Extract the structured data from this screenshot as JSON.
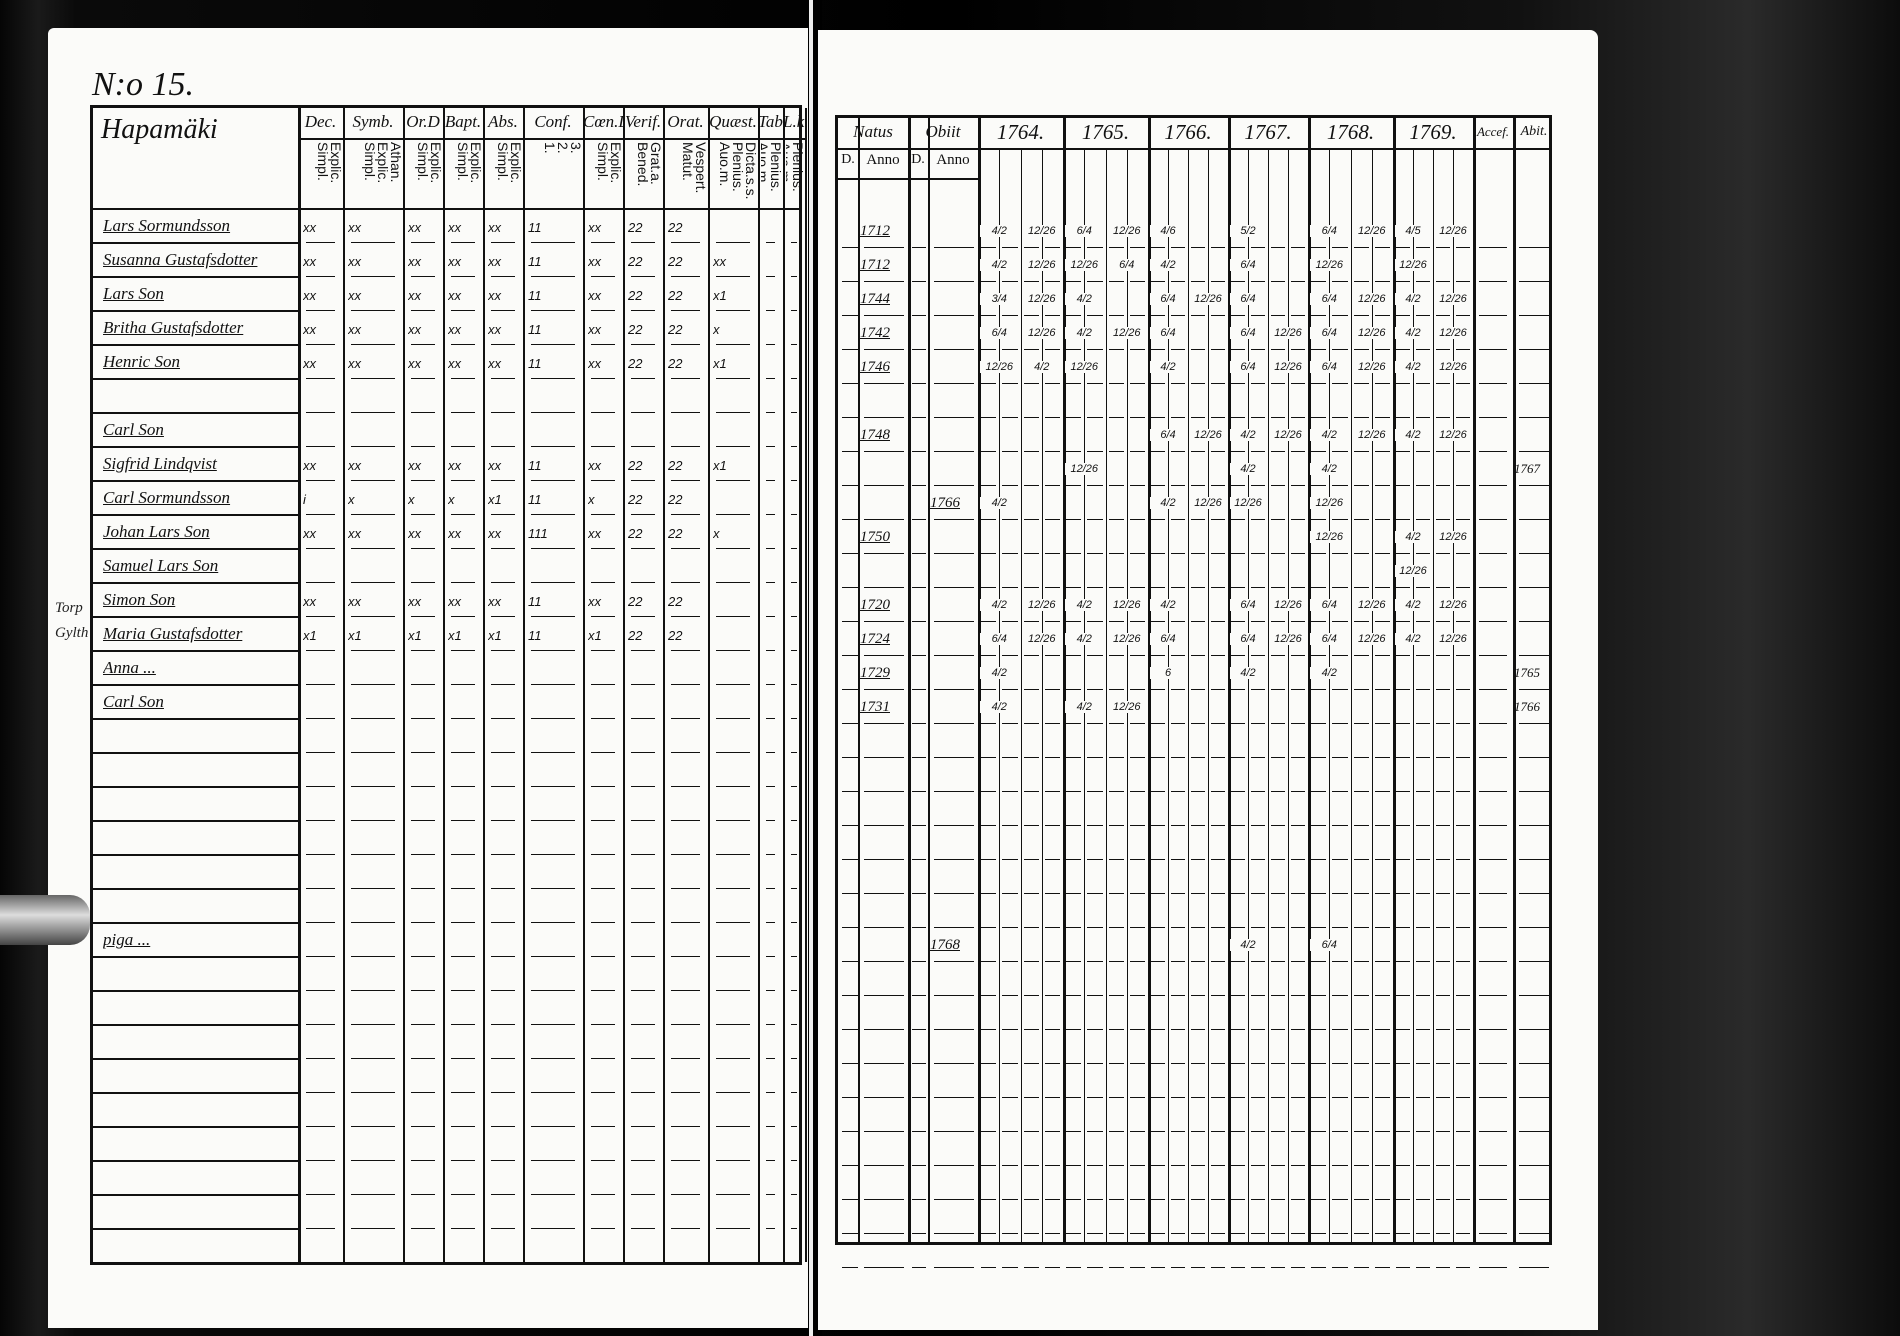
{
  "left_page": {
    "page_number": "N:o 15.",
    "village": "Hapamäki",
    "column_headers": [
      {
        "label": "Dec.",
        "sub": "Explic.\nSimpl."
      },
      {
        "label": "Symb.",
        "sub": "Athan.\nExplic.\nSimpl."
      },
      {
        "label": "Or.D",
        "sub": "Explic.\nSimpl."
      },
      {
        "label": "Bapt.",
        "sub": "Explic.\nSimpl."
      },
      {
        "label": "Abs.",
        "sub": "Explic.\nSimpl."
      },
      {
        "label": "Conf.",
        "sub": "3.\n2.\n1."
      },
      {
        "label": "Cœn.D.",
        "sub": "Explic.\nSimpl."
      },
      {
        "label": "Verif.",
        "sub": "Grat.a.\nBened."
      },
      {
        "label": "Orat.",
        "sub": "Vespert.\nMatut."
      },
      {
        "label": "Quæst.",
        "sub": "Dicta.s.s.\nPlenius.\nAuo.m."
      },
      {
        "label": "Tabul.",
        "sub": "Plenius.\nAuo.m."
      },
      {
        "label": "L.k.",
        "sub": "Plenius.\nAuo.m."
      }
    ],
    "margin_notes": [
      "Torp",
      "Gylth"
    ]
  },
  "right_page": {
    "headers": {
      "natus": "Natus",
      "obiit": "Obiit",
      "d": "D.",
      "anno": "Anno",
      "years": [
        "1764.",
        "1765.",
        "1766.",
        "1767.",
        "1768.",
        "1769."
      ],
      "accessit": "Accef.",
      "abiit": "Abit."
    }
  },
  "rows": [
    {
      "name": "Lars Sormundsson",
      "marks": [
        "xx",
        "xx",
        "xx",
        "xx",
        "xx",
        "11",
        "xx",
        "22",
        "22",
        "",
        "",
        ""
      ],
      "born": "1712",
      "died": "",
      "exams": [
        [
          "4/2",
          "12/26"
        ],
        [
          "6/4",
          "12/26"
        ],
        [
          "4/6"
        ],
        [
          "5/2"
        ],
        [
          "6/4",
          "12/26"
        ],
        [
          "4/5",
          "12/26"
        ]
      ],
      "moved": ""
    },
    {
      "name": "Susanna Gustafsdotter",
      "marks": [
        "xx",
        "xx",
        "xx",
        "xx",
        "xx",
        "11",
        "xx",
        "22",
        "22",
        "xx",
        "",
        ""
      ],
      "born": "1712",
      "died": "",
      "exams": [
        [
          "4/2",
          "12/26"
        ],
        [
          "12/26",
          "6/4"
        ],
        [
          "4/2"
        ],
        [
          "6/4"
        ],
        [
          "12/26"
        ],
        [
          "12/26"
        ]
      ],
      "moved": ""
    },
    {
      "name": "Lars Son",
      "marks": [
        "xx",
        "xx",
        "xx",
        "xx",
        "xx",
        "11",
        "xx",
        "22",
        "22",
        "x1",
        "",
        ""
      ],
      "born": "1744",
      "died": "",
      "exams": [
        [
          "3/4",
          "12/26"
        ],
        [
          "4/2"
        ],
        [
          "6/4",
          "12/26"
        ],
        [
          "6/4"
        ],
        [
          "6/4",
          "12/26"
        ],
        [
          "4/2",
          "12/26"
        ]
      ],
      "moved": ""
    },
    {
      "name": "Britha Gustafsdotter",
      "marks": [
        "xx",
        "xx",
        "xx",
        "xx",
        "xx",
        "11",
        "xx",
        "22",
        "22",
        "x",
        "",
        ""
      ],
      "born": "1742",
      "died": "",
      "exams": [
        [
          "6/4",
          "12/26"
        ],
        [
          "4/2",
          "12/26"
        ],
        [
          "6/4"
        ],
        [
          "6/4",
          "12/26"
        ],
        [
          "6/4",
          "12/26"
        ],
        [
          "4/2",
          "12/26"
        ]
      ],
      "moved": ""
    },
    {
      "name": "Henric Son",
      "marks": [
        "xx",
        "xx",
        "xx",
        "xx",
        "xx",
        "11",
        "xx",
        "22",
        "22",
        "x1",
        "",
        ""
      ],
      "born": "1746",
      "died": "",
      "exams": [
        [
          "12/26",
          "4/2"
        ],
        [
          "12/26"
        ],
        [
          "4/2"
        ],
        [
          "6/4",
          "12/26"
        ],
        [
          "6/4",
          "12/26"
        ],
        [
          "4/2",
          "12/26"
        ]
      ],
      "moved": ""
    },
    {
      "name": "",
      "marks": [],
      "born": "",
      "died": "",
      "exams": [],
      "moved": ""
    },
    {
      "name": "Carl Son",
      "marks": [],
      "born": "1748",
      "died": "",
      "exams": [
        [],
        [],
        [
          "6/4",
          "12/26"
        ],
        [
          "4/2",
          "12/26"
        ],
        [
          "4/2",
          "12/26"
        ],
        [
          "4/2",
          "12/26"
        ]
      ],
      "moved": ""
    },
    {
      "name": "Sigfrid Lindqvist",
      "marks": [
        "xx",
        "xx",
        "xx",
        "xx",
        "xx",
        "11",
        "xx",
        "22",
        "22",
        "x1",
        "",
        ""
      ],
      "born": "",
      "died": "",
      "exams": [
        [],
        [
          "12/26"
        ],
        [],
        [
          "4/2"
        ],
        [
          "4/2"
        ],
        []
      ],
      "moved": "1767"
    },
    {
      "name": "Carl Sormundsson",
      "marks": [
        "i",
        "x",
        "x",
        "x",
        "x1",
        "11",
        "x",
        "22",
        "22",
        "",
        "",
        ""
      ],
      "born": "",
      "died": "1766",
      "exams": [
        [
          "4/2"
        ],
        [],
        [
          "4/2",
          "12/26"
        ],
        [
          "12/26"
        ],
        [
          "12/26"
        ],
        []
      ],
      "moved": ""
    },
    {
      "name": "Johan Lars Son",
      "marks": [
        "xx",
        "xx",
        "xx",
        "xx",
        "xx",
        "111",
        "xx",
        "22",
        "22",
        "x",
        "",
        ""
      ],
      "born": "1750",
      "died": "",
      "exams": [
        [],
        [],
        [],
        [],
        [
          "12/26"
        ],
        [
          "4/2",
          "12/26"
        ]
      ],
      "moved": ""
    },
    {
      "name": "Samuel Lars Son",
      "marks": [],
      "born": "",
      "died": "",
      "exams": [
        [],
        [],
        [],
        [],
        [],
        [
          "12/26"
        ]
      ],
      "moved": ""
    },
    {
      "name": "Simon Son",
      "marks": [
        "xx",
        "xx",
        "xx",
        "xx",
        "xx",
        "11",
        "xx",
        "22",
        "22",
        "",
        "",
        ""
      ],
      "born": "1720",
      "died": "",
      "exams": [
        [
          "4/2",
          "12/26"
        ],
        [
          "4/2",
          "12/26"
        ],
        [
          "4/2"
        ],
        [
          "6/4",
          "12/26"
        ],
        [
          "6/4",
          "12/26"
        ],
        [
          "4/2",
          "12/26"
        ]
      ],
      "moved": ""
    },
    {
      "name": "Maria Gustafsdotter",
      "marks": [
        "x1",
        "x1",
        "x1",
        "x1",
        "x1",
        "11",
        "x1",
        "22",
        "22",
        "",
        "",
        ""
      ],
      "born": "1724",
      "died": "",
      "exams": [
        [
          "6/4",
          "12/26"
        ],
        [
          "4/2",
          "12/26"
        ],
        [
          "6/4"
        ],
        [
          "6/4",
          "12/26"
        ],
        [
          "6/4",
          "12/26"
        ],
        [
          "4/2",
          "12/26"
        ]
      ],
      "moved": ""
    },
    {
      "name": "Anna ...",
      "marks": [],
      "born": "1729",
      "died": "",
      "exams": [
        [
          "4/2"
        ],
        [],
        [
          "6"
        ],
        [
          "4/2"
        ],
        [
          "4/2"
        ],
        []
      ],
      "moved": "1765"
    },
    {
      "name": "Carl Son",
      "marks": [],
      "born": "1731",
      "died": "",
      "exams": [
        [
          "4/2"
        ],
        [
          "4/2",
          "12/26"
        ],
        [],
        [],
        [],
        []
      ],
      "moved": "1766"
    },
    {
      "name": "",
      "marks": [],
      "born": "",
      "died": "",
      "exams": [],
      "moved": ""
    },
    {
      "name": "",
      "marks": [],
      "born": "",
      "died": "",
      "exams": [],
      "moved": ""
    },
    {
      "name": "",
      "marks": [],
      "born": "",
      "died": "",
      "exams": [],
      "moved": ""
    },
    {
      "name": "",
      "marks": [],
      "born": "",
      "died": "",
      "exams": [],
      "moved": ""
    },
    {
      "name": "",
      "marks": [],
      "born": "",
      "died": "",
      "exams": [],
      "moved": ""
    },
    {
      "name": "",
      "marks": [],
      "born": "",
      "died": "",
      "exams": [],
      "moved": ""
    },
    {
      "name": "piga ...",
      "marks": [],
      "born": "",
      "died": "1768",
      "exams": [
        [],
        [],
        [],
        [
          "4/2"
        ],
        [
          "6/4"
        ],
        []
      ],
      "moved": ""
    }
  ]
}
